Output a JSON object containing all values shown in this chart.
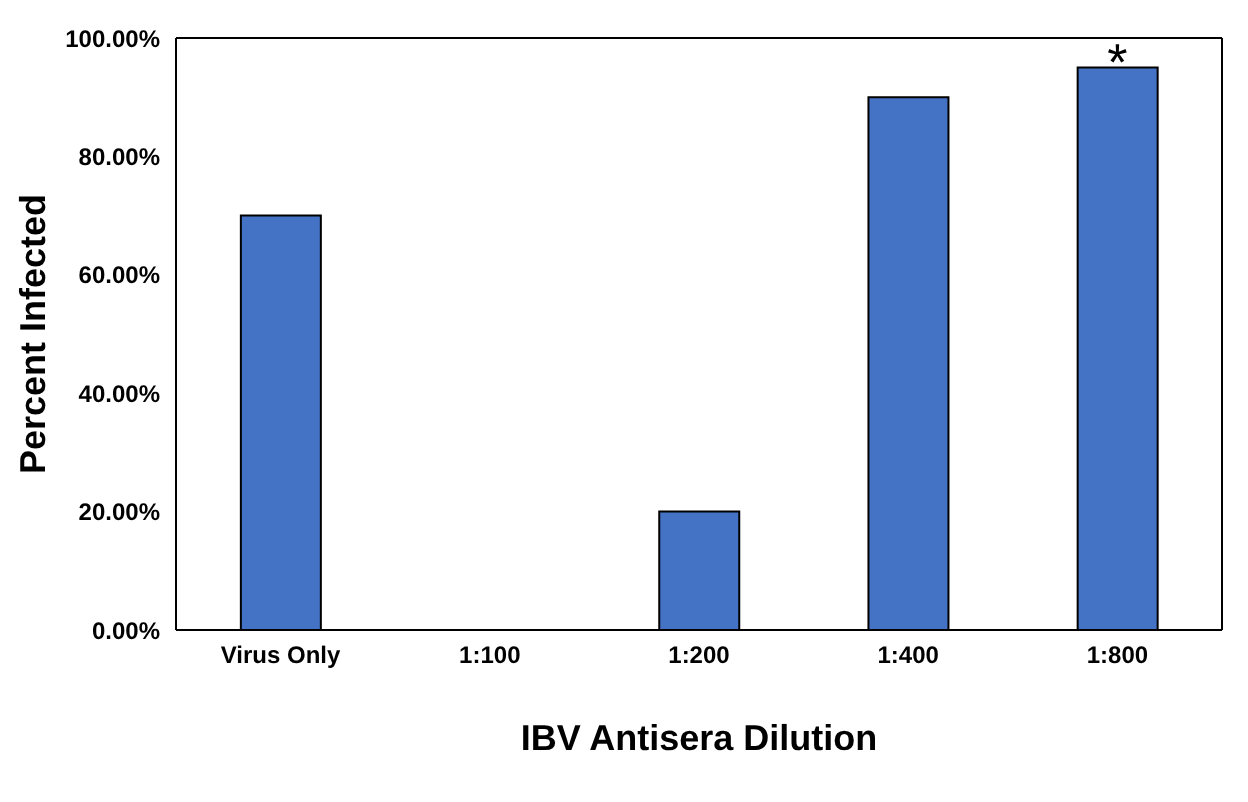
{
  "chart_data": {
    "type": "bar",
    "xlabel": "IBV Antisera Dilution",
    "ylabel": "Percent Infected",
    "categories": [
      "Virus Only",
      "1:100",
      "1:200",
      "1:400",
      "1:800"
    ],
    "values": [
      70,
      0,
      20,
      90,
      95
    ],
    "color": "#4472c4",
    "ylim": [
      0,
      100
    ],
    "yticks": [
      {
        "value": 0,
        "label": "0.00%"
      },
      {
        "value": 20,
        "label": "20.00%"
      },
      {
        "value": 40,
        "label": "40.00%"
      },
      {
        "value": 60,
        "label": "60.00%"
      },
      {
        "value": 80,
        "label": "80.00%"
      },
      {
        "value": 100,
        "label": "100.00%"
      }
    ],
    "grid": false,
    "legend": false,
    "annotations": [
      {
        "text": "*",
        "x": "1:800",
        "y": 95
      }
    ]
  }
}
